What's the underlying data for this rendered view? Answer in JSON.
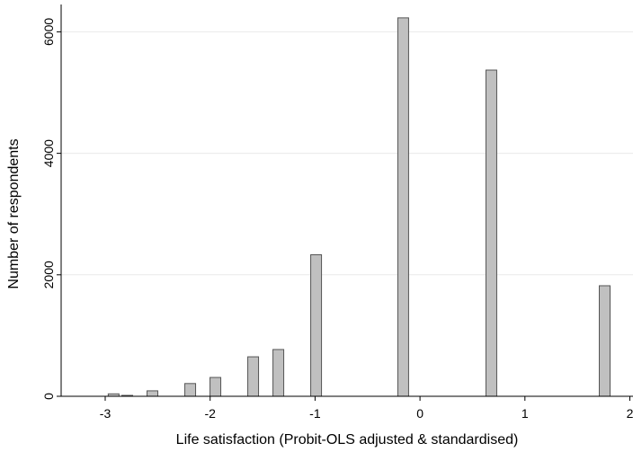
{
  "chart_data": {
    "type": "bar",
    "x_label": "Life satisfaction (Probit-OLS adjusted & standardised)",
    "y_label": "Number of respondents",
    "x": [
      -2.92,
      -2.79,
      -2.55,
      -2.19,
      -1.95,
      -1.59,
      -1.35,
      -0.99,
      -0.16,
      0.68,
      1.76
    ],
    "values": [
      40,
      15,
      90,
      210,
      310,
      650,
      770,
      2330,
      6230,
      5370,
      1820
    ],
    "color": "#c0c0c0",
    "xlim": [
      -3.42,
      2.03
    ],
    "xticks": [
      -3,
      -2,
      -1,
      0,
      1,
      2
    ],
    "ylim": [
      0,
      6450
    ],
    "yticks": [
      0,
      2000,
      4000,
      6000
    ],
    "grid": true
  }
}
